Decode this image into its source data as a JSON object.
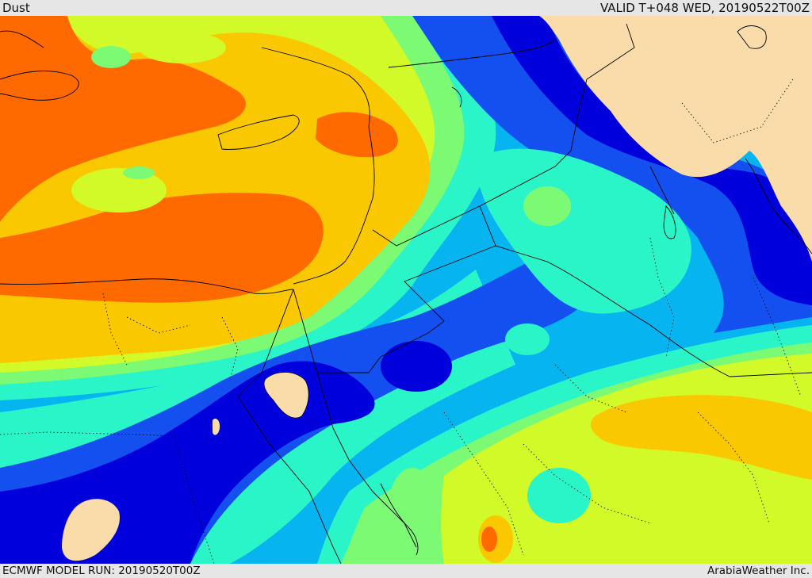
{
  "header": {
    "product": "Dust",
    "valid": "VALID T+048 WED, 20190522T00Z"
  },
  "footer": {
    "model_run": "ECMWF MODEL RUN: 20190520T00Z",
    "credit": "ArabiaWeather Inc."
  },
  "map": {
    "region": "Eastern Mediterranean, Egypt, Levant, Arabian Peninsula",
    "field": "Dust concentration",
    "palette": [
      "#0000dd",
      "#1450f0",
      "#06b4f0",
      "#2af5c8",
      "#7dfa73",
      "#d2fa28",
      "#fac800",
      "#ff6a00"
    ],
    "land_color": "#fadcaa"
  }
}
